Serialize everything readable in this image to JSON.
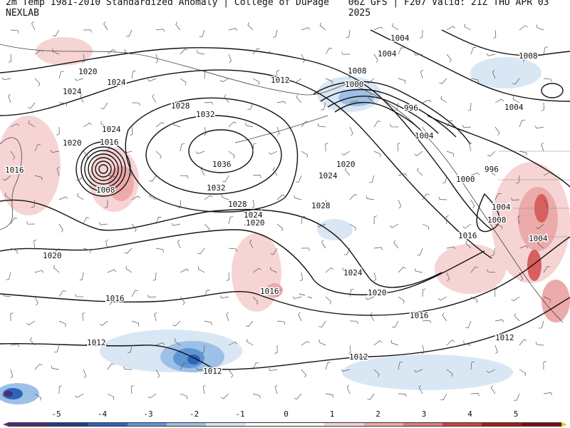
{
  "header": {
    "left_title": "2m Temp 1981-2010 Standardized Anomaly | College of DuPage NEXLAB",
    "right_title": "06Z GFS | F207 Valid: 21Z THU APR 03 2025"
  },
  "map": {
    "isobar_labels": [
      "1020",
      "1024",
      "1024",
      "1020",
      "1016",
      "1024",
      "1016",
      "1008",
      "1020",
      "1028",
      "1032",
      "1036",
      "1032",
      "1028",
      "1024",
      "1020",
      "1016",
      "1016",
      "1012",
      "1012",
      "1012",
      "1004",
      "1004",
      "1012",
      "1008",
      "1000",
      "996",
      "1004",
      "1000",
      "996",
      "1004",
      "1008",
      "1004",
      "1024",
      "1020",
      "1028",
      "1024",
      "1020",
      "1016",
      "1016",
      "1012",
      "1008",
      "1004"
    ],
    "anomaly_colors": {
      "cold_strong": "#5a2d82",
      "cold": "#2f5fb5",
      "cold_mild": "#a9c8ea",
      "warm_mild": "#f2b8b8",
      "warm": "#d95f5f",
      "warm_strong": "#b22222"
    }
  },
  "legend": {
    "ticks": [
      "-5",
      "-4",
      "-3",
      "-2",
      "-1",
      "0",
      "1",
      "2",
      "3",
      "4",
      "5"
    ],
    "colors": [
      "#4b2a7a",
      "#1f3c8a",
      "#2e64b8",
      "#5f95d4",
      "#9dc0e6",
      "#d9e7f5",
      "#ffffff",
      "#ffffff",
      "#f6d4d4",
      "#ecaaaa",
      "#de7b7b",
      "#c94444",
      "#a51d1d",
      "#7d0d0d"
    ]
  }
}
